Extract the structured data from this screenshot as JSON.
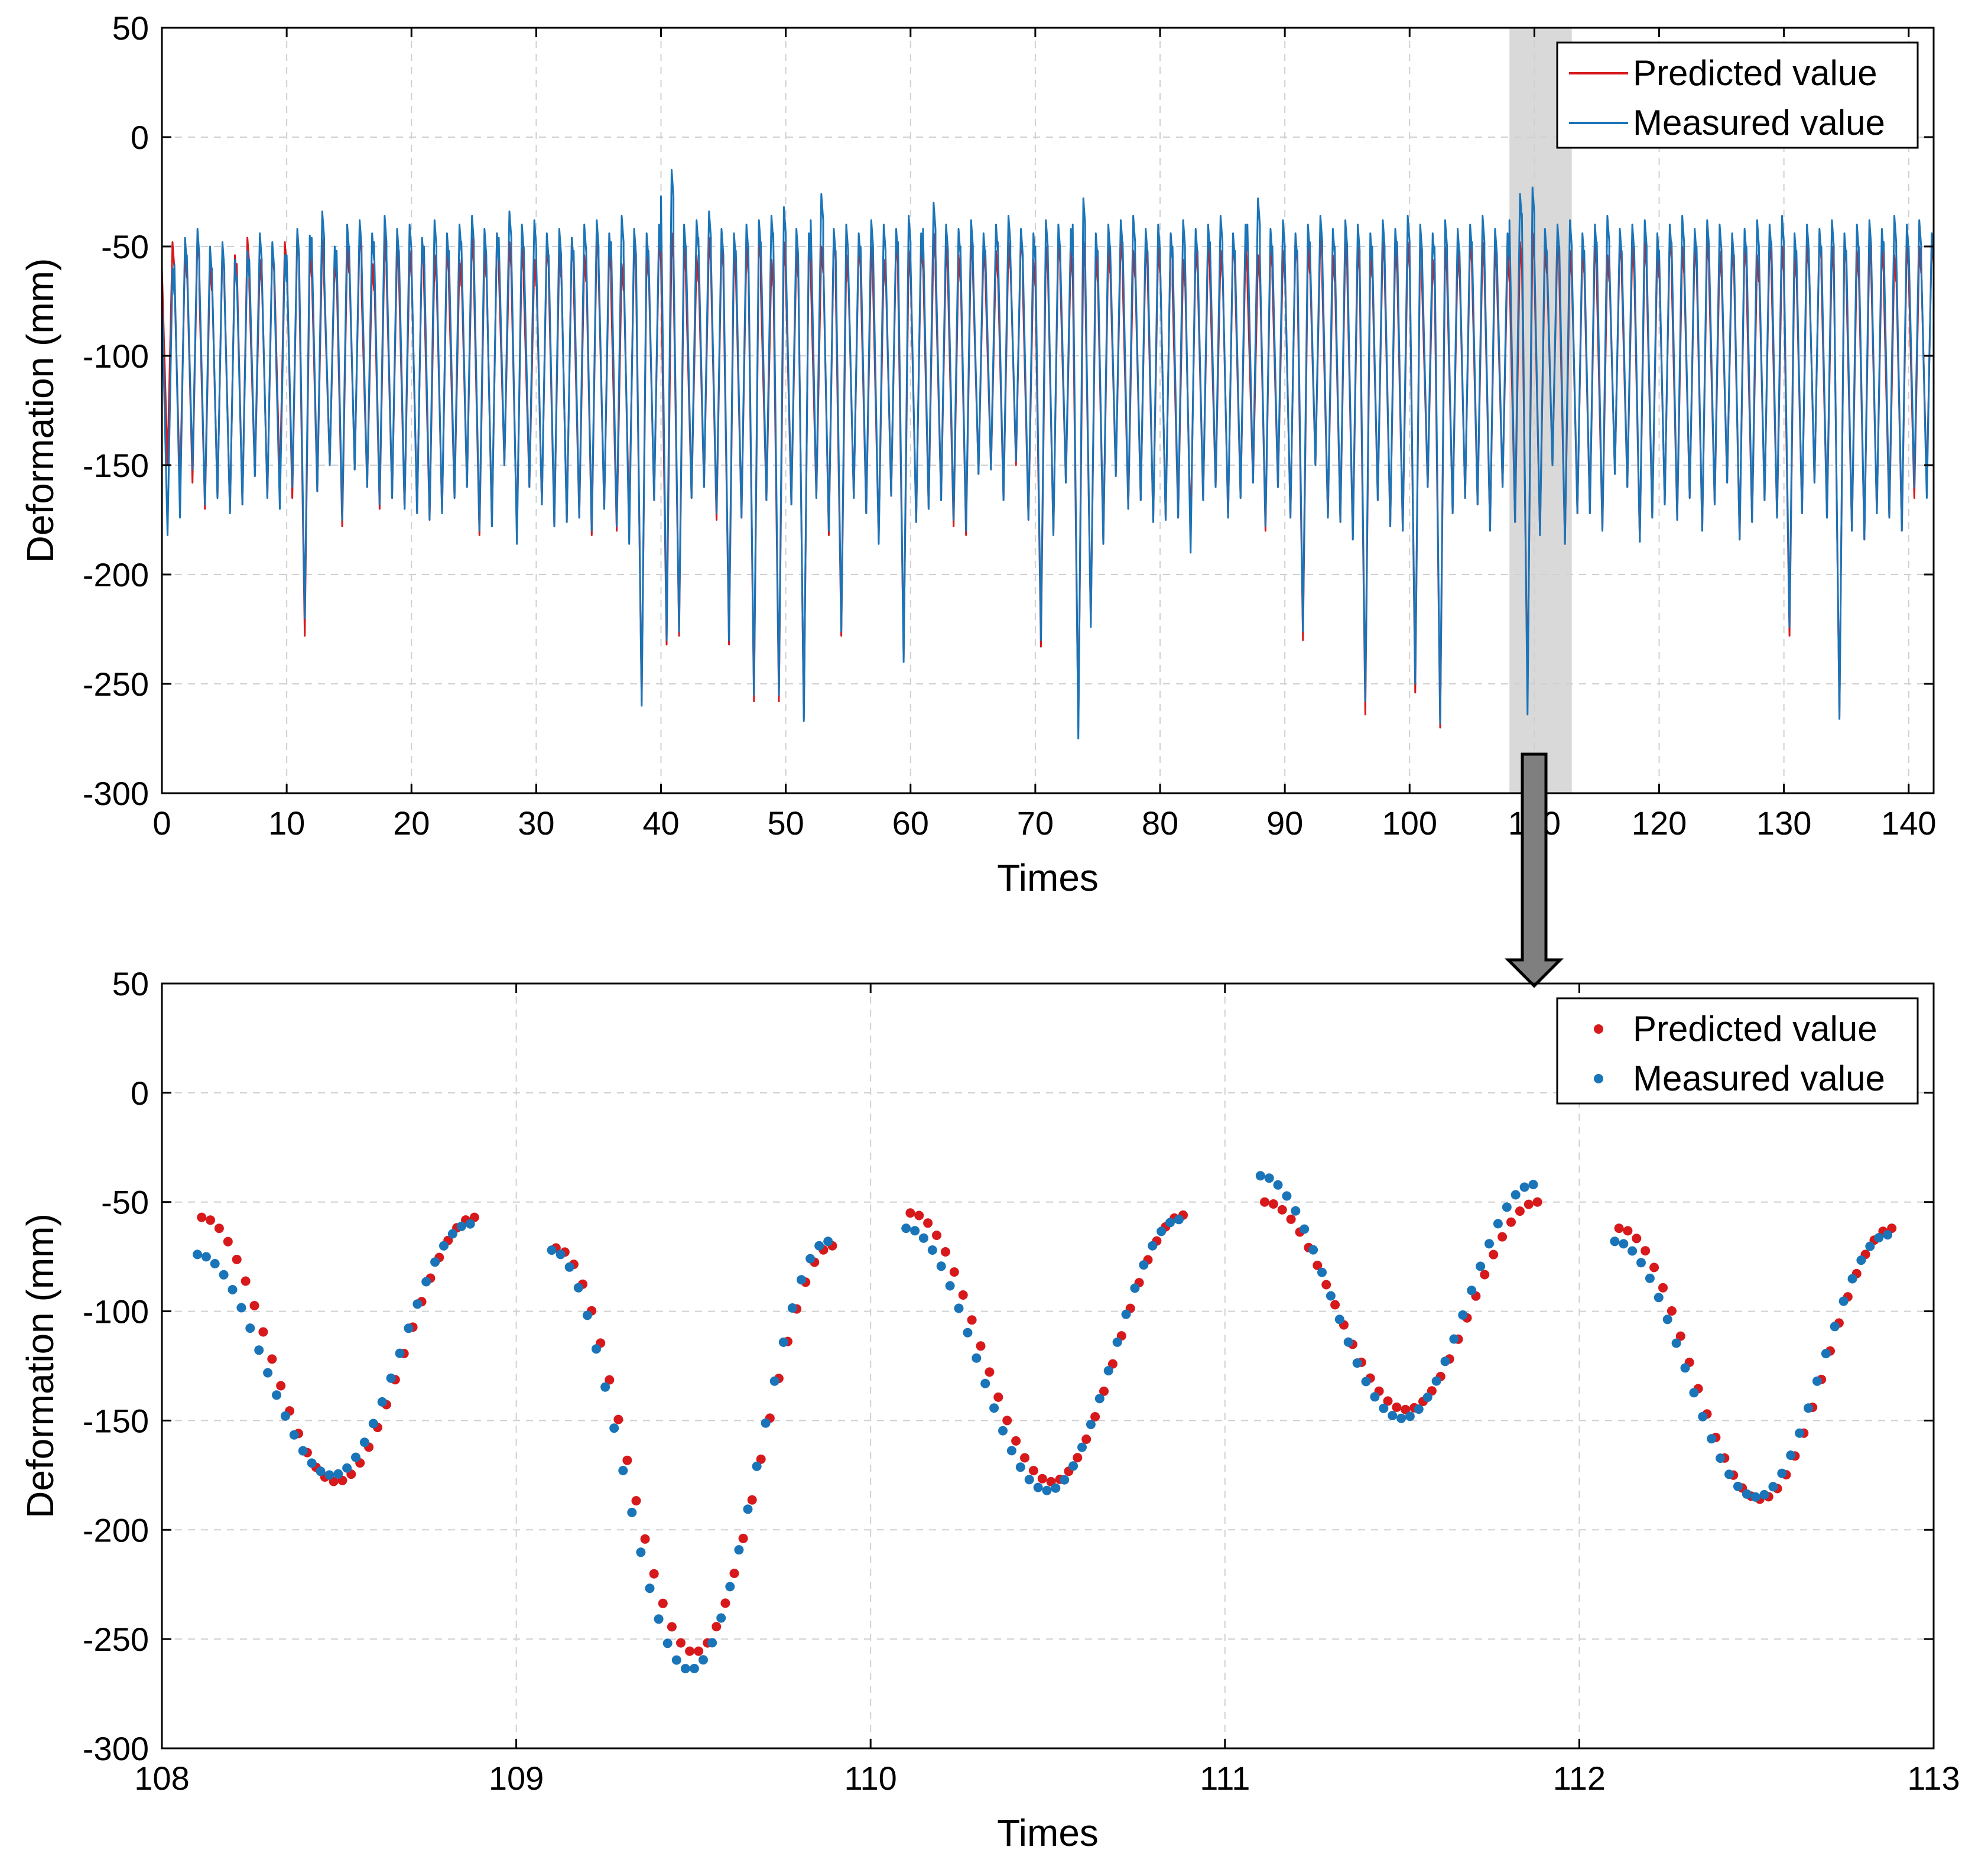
{
  "colors": {
    "predicted": "#D7191C",
    "measured": "#1A74B8",
    "grid": "#D0D0D0",
    "highlight": "#D9D9D9",
    "arrow_fill": "#7F7F7F"
  },
  "highlight": {
    "x_range": [
      108,
      113
    ],
    "description_target": "zoom-arrow"
  },
  "chart_data": [
    {
      "type": "line",
      "xlabel": "Times",
      "ylabel": "Deformation (mm)",
      "xlim": [
        0,
        142
      ],
      "ylim": [
        -300,
        50
      ],
      "xticks": [
        0,
        10,
        20,
        30,
        40,
        50,
        60,
        70,
        80,
        90,
        100,
        110,
        120,
        130,
        140
      ],
      "yticks": [
        50,
        0,
        -50,
        -100,
        -150,
        -200,
        -250,
        -300
      ],
      "grid": true,
      "legend_position": "top-right",
      "legend": [
        "Predicted value",
        "Measured value"
      ],
      "cycle": {
        "period": 1,
        "active_fraction": 0.8,
        "min_phase": 0.45
      },
      "series": [
        {
          "name": "Predicted value",
          "minima": [
            -150,
            -162,
            -158,
            -170,
            -165,
            -172,
            -168,
            -155,
            -165,
            -160,
            -165,
            -228,
            -162,
            -150,
            -178,
            -152,
            -160,
            -170,
            -165,
            -170,
            -172,
            -175,
            -172,
            -165,
            -160,
            -182,
            -178,
            -150,
            -182,
            -160,
            -168,
            -178,
            -176,
            -174,
            -182,
            -170,
            -180,
            -178,
            -258,
            -166,
            -232,
            -228,
            -165,
            -160,
            -175,
            -232,
            -174,
            -258,
            -166,
            -258,
            -168,
            -266,
            -165,
            -182,
            -228,
            -165,
            -172,
            -184,
            -164,
            -238,
            -176,
            -170,
            -166,
            -178,
            -182,
            -154,
            -152,
            -166,
            -150,
            -175,
            -233,
            -182,
            -158,
            -270,
            -222,
            -186,
            -155,
            -170,
            -166,
            -176,
            -175,
            -174,
            -182,
            -166,
            -160,
            -174,
            -165,
            -158,
            -180,
            -160,
            -174,
            -230,
            -150,
            -174,
            -176,
            -184,
            -264,
            -166,
            -178,
            -180,
            -254,
            -160,
            -270,
            -172,
            -165,
            -168,
            -180,
            -160,
            -176,
            -254,
            -182,
            -150,
            -186,
            -172,
            -172,
            -180,
            -154,
            -160,
            -185,
            -174,
            -168,
            -175,
            -165,
            -180,
            -168,
            -158,
            -184,
            -176,
            -166,
            -174,
            -228,
            -172,
            -158,
            -174,
            -265,
            -180,
            -184,
            -172,
            -174,
            -180,
            -165,
            -160
          ],
          "maxima": [
            -48,
            -52,
            -45,
            -58,
            -50,
            -54,
            -46,
            -56,
            -50,
            -48,
            -44,
            -52,
            -47,
            -55,
            -50,
            -42,
            -58,
            -46,
            -50,
            -52,
            -48,
            -54,
            -50,
            -56,
            -46,
            -52,
            -44,
            -48,
            -50,
            -56,
            -48,
            -52,
            -46,
            -54,
            -44,
            -50,
            -58,
            -48,
            -52,
            -45,
            -44,
            -50,
            -54,
            -46,
            -48,
            -52,
            -50,
            -44,
            -56,
            -48,
            -52,
            -46,
            -50,
            -44,
            -54,
            -48,
            -50,
            -56,
            -46,
            -52,
            -48,
            -44,
            -50,
            -54,
            -46,
            -50,
            -52,
            -48,
            -44,
            -56,
            -50,
            -46,
            -52,
            -48,
            -54,
            -50,
            -46,
            -52,
            -48,
            -50,
            -44,
            -56,
            -50,
            -48,
            -52,
            -46,
            -50,
            -54,
            -48,
            -52,
            -46,
            -50,
            -44,
            -54,
            -48,
            -50,
            -52,
            -46,
            -50,
            -48,
            -44,
            -56,
            -50,
            -52,
            -46,
            -48,
            -50,
            -54,
            -48,
            -44,
            -50,
            -46,
            -52,
            -50,
            -48,
            -54,
            -46,
            -50,
            -48,
            -52,
            -44,
            -50,
            -48,
            -46,
            -52,
            -50,
            -48,
            -54,
            -46,
            -50,
            -52,
            -48,
            -44,
            -50,
            -46,
            -52,
            -48,
            -50,
            -54,
            -48,
            -50,
            -46
          ]
        },
        {
          "name": "Measured value",
          "minima": [
            -182,
            -174,
            -152,
            -168,
            -165,
            -172,
            -168,
            -155,
            -165,
            -170,
            -160,
            -220,
            -162,
            -150,
            -175,
            -152,
            -160,
            -168,
            -165,
            -170,
            -172,
            -175,
            -172,
            -165,
            -160,
            -180,
            -178,
            -150,
            -186,
            -160,
            -168,
            -178,
            -176,
            -174,
            -180,
            -170,
            -178,
            -186,
            -260,
            -166,
            -230,
            -226,
            -165,
            -160,
            -172,
            -230,
            -174,
            -255,
            -166,
            -255,
            -168,
            -267,
            -165,
            -180,
            -226,
            -165,
            -172,
            -186,
            -164,
            -240,
            -176,
            -170,
            -166,
            -175,
            -180,
            -154,
            -152,
            -166,
            -148,
            -175,
            -230,
            -182,
            -158,
            -275,
            -224,
            -186,
            -155,
            -170,
            -166,
            -176,
            -175,
            -174,
            -190,
            -166,
            -160,
            -174,
            -165,
            -158,
            -178,
            -160,
            -174,
            -226,
            -150,
            -174,
            -176,
            -184,
            -258,
            -166,
            -178,
            -180,
            -250,
            -160,
            -268,
            -172,
            -165,
            -168,
            -180,
            -160,
            -176,
            -264,
            -182,
            -150,
            -186,
            -172,
            -172,
            -180,
            -154,
            -160,
            -185,
            -174,
            -168,
            -175,
            -165,
            -180,
            -168,
            -158,
            -184,
            -176,
            -166,
            -174,
            -224,
            -172,
            -158,
            -174,
            -266,
            -180,
            -184,
            -172,
            -174,
            -180,
            -160,
            -165
          ],
          "maxima": [
            -60,
            -46,
            -42,
            -50,
            -48,
            -56,
            -52,
            -44,
            -48,
            -54,
            -42,
            -45,
            -34,
            -50,
            -40,
            -38,
            -44,
            -36,
            -42,
            -40,
            -46,
            -38,
            -44,
            -40,
            -36,
            -42,
            -44,
            -34,
            -40,
            -38,
            -44,
            -42,
            -46,
            -40,
            -38,
            -44,
            -36,
            -42,
            -44,
            -40,
            -15,
            -40,
            -38,
            -34,
            -42,
            -44,
            -40,
            -38,
            -36,
            -32,
            -42,
            -44,
            -26,
            -42,
            -40,
            -44,
            -38,
            -40,
            -42,
            -36,
            -44,
            -30,
            -40,
            -42,
            -38,
            -44,
            -40,
            -36,
            -42,
            -44,
            -38,
            -40,
            -42,
            -28,
            -44,
            -40,
            -38,
            -36,
            -42,
            -40,
            -44,
            -38,
            -42,
            -40,
            -36,
            -44,
            -40,
            -28,
            -42,
            -38,
            -44,
            -40,
            -36,
            -42,
            -38,
            -40,
            -44,
            -38,
            -42,
            -36,
            -40,
            -44,
            -38,
            -42,
            -40,
            -36,
            -42,
            -44,
            -26,
            -23,
            -42,
            -40,
            -38,
            -44,
            -40,
            -36,
            -42,
            -40,
            -38,
            -44,
            -40,
            -36,
            -42,
            -38,
            -40,
            -44,
            -42,
            -38,
            -40,
            -36,
            -44,
            -40,
            -42,
            -38,
            -44,
            -40,
            -38,
            -42,
            -36,
            -40,
            -38,
            -44
          ]
        }
      ]
    },
    {
      "type": "scatter",
      "xlabel": "Times",
      "ylabel": "Deformation (mm)",
      "xlim": [
        108,
        113
      ],
      "ylim": [
        -300,
        50
      ],
      "xticks": [
        108,
        109,
        110,
        111,
        112,
        113
      ],
      "yticks": [
        50,
        0,
        -50,
        -100,
        -150,
        -200,
        -250,
        -300
      ],
      "grid": true,
      "legend_position": "top-right",
      "legend": [
        "Predicted value",
        "Measured value"
      ],
      "cycles": [
        {
          "start": 108.1,
          "end": 108.87,
          "min_x": 108.48,
          "predicted": {
            "start": -57,
            "min": -178,
            "end": -57
          },
          "measured": {
            "start": -74,
            "min": -175,
            "end": -60
          }
        },
        {
          "start": 109.1,
          "end": 109.88,
          "min_x": 109.49,
          "predicted": {
            "start": -71,
            "min": -256,
            "end": -70
          },
          "measured": {
            "start": -72,
            "min": -264,
            "end": -68
          }
        },
        {
          "start": 110.1,
          "end": 110.87,
          "min_x": 110.5,
          "predicted": {
            "start": -55,
            "min": -178,
            "end": -56
          },
          "measured": {
            "start": -62,
            "min": -182,
            "end": -58
          }
        },
        {
          "start": 111.1,
          "end": 111.87,
          "min_x": 111.5,
          "predicted": {
            "start": -50,
            "min": -145,
            "end": -50
          },
          "measured": {
            "start": -38,
            "min": -149,
            "end": -42
          }
        },
        {
          "start": 112.1,
          "end": 112.87,
          "min_x": 112.5,
          "predicted": {
            "start": -62,
            "min": -186,
            "end": -62
          },
          "measured": {
            "start": -68,
            "min": -185,
            "end": -65
          }
        }
      ],
      "points_per_cycle": 32
    }
  ]
}
